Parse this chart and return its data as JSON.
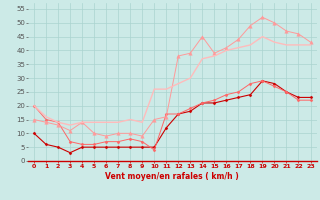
{
  "xlabel": "Vent moyen/en rafales ( km/h )",
  "background_color": "#cceae7",
  "grid_color": "#aad4d0",
  "axis_color": "#cc0000",
  "xlim": [
    -0.5,
    23.5
  ],
  "ylim": [
    0,
    57
  ],
  "xticks": [
    0,
    1,
    2,
    3,
    4,
    5,
    6,
    7,
    8,
    9,
    10,
    11,
    12,
    13,
    14,
    15,
    16,
    17,
    18,
    19,
    20,
    21,
    22,
    23
  ],
  "yticks": [
    0,
    5,
    10,
    15,
    20,
    25,
    30,
    35,
    40,
    45,
    50,
    55
  ],
  "series": [
    {
      "x": [
        0,
        1,
        2,
        3,
        4,
        5,
        6,
        7,
        8,
        9,
        10,
        11,
        12,
        13,
        14,
        15,
        16,
        17,
        18,
        19,
        20,
        21,
        22,
        23
      ],
      "y": [
        10,
        6,
        5,
        3,
        5,
        5,
        5,
        5,
        5,
        5,
        5,
        12,
        17,
        18,
        21,
        21,
        22,
        23,
        24,
        29,
        28,
        25,
        23,
        23
      ],
      "color": "#cc0000",
      "marker": "D",
      "markersize": 1.5,
      "linewidth": 0.8
    },
    {
      "x": [
        0,
        1,
        2,
        3,
        4,
        5,
        6,
        7,
        8,
        9,
        10,
        11,
        12,
        13,
        14,
        15,
        16,
        17,
        18,
        19,
        20,
        21,
        22,
        23
      ],
      "y": [
        20,
        15,
        14,
        7,
        6,
        6,
        7,
        7,
        8,
        7,
        4,
        17,
        17,
        19,
        21,
        22,
        24,
        25,
        28,
        29,
        27,
        25,
        22,
        22
      ],
      "color": "#ff6666",
      "marker": "D",
      "markersize": 1.5,
      "linewidth": 0.7
    },
    {
      "x": [
        0,
        1,
        2,
        3,
        4,
        5,
        6,
        7,
        8,
        9,
        10,
        11,
        12,
        13,
        14,
        15,
        16,
        17,
        18,
        19,
        20,
        21,
        22,
        23
      ],
      "y": [
        15,
        14,
        13,
        11,
        14,
        10,
        9,
        10,
        10,
        9,
        15,
        16,
        38,
        39,
        45,
        39,
        41,
        44,
        49,
        52,
        50,
        47,
        46,
        43
      ],
      "color": "#ff9999",
      "marker": "^",
      "markersize": 2.5,
      "linewidth": 0.7
    },
    {
      "x": [
        0,
        1,
        2,
        3,
        4,
        5,
        6,
        7,
        8,
        9,
        10,
        11,
        12,
        13,
        14,
        15,
        16,
        17,
        18,
        19,
        20,
        21,
        22,
        23
      ],
      "y": [
        20,
        16,
        14,
        13,
        14,
        14,
        14,
        14,
        15,
        14,
        26,
        26,
        28,
        30,
        37,
        38,
        40,
        41,
        42,
        45,
        43,
        42,
        42,
        42
      ],
      "color": "#ffbbbb",
      "marker": null,
      "markersize": 0,
      "linewidth": 1.0
    }
  ]
}
